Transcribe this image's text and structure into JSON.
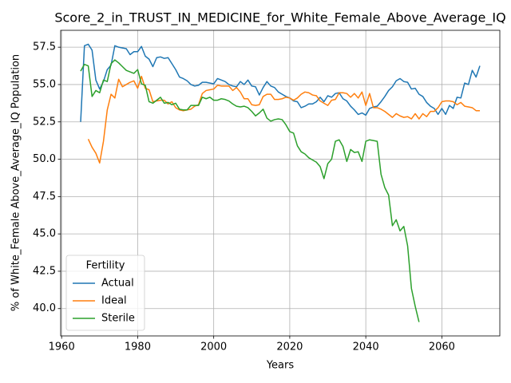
{
  "chart_data": {
    "type": "line",
    "title": "Score_2_in_TRUST_IN_MEDICINE_for_White_Female_Above_Average_IQ",
    "xlabel": "Years",
    "ylabel": "% of White_Female Above_Average_IQ Population",
    "legend_title": "Fertility",
    "legend": "lower left",
    "grid": true,
    "xlim": [
      1959.75,
      2075.25
    ],
    "ylim": [
      38.17,
      58.63
    ],
    "xticks": [
      1960,
      1980,
      2000,
      2020,
      2040,
      2060
    ],
    "yticks": [
      {
        "value": 40,
        "label": "40.0"
      },
      42.5,
      {
        "value": 45,
        "label": "45.0"
      },
      47.5,
      {
        "value": 50,
        "label": "50.0"
      },
      52.5,
      {
        "value": 55,
        "label": "55.0"
      },
      57.5
    ],
    "x": [
      1965,
      1966,
      1967,
      1968,
      1969,
      1970,
      1971,
      1972,
      1973,
      1974,
      1975,
      1976,
      1977,
      1978,
      1979,
      1980,
      1981,
      1982,
      1983,
      1984,
      1985,
      1986,
      1987,
      1988,
      1989,
      1990,
      1991,
      1992,
      1993,
      1994,
      1995,
      1996,
      1997,
      1998,
      1999,
      2000,
      2001,
      2002,
      2003,
      2004,
      2005,
      2006,
      2007,
      2008,
      2009,
      2010,
      2011,
      2012,
      2013,
      2014,
      2015,
      2016,
      2017,
      2018,
      2019,
      2020,
      2021,
      2022,
      2023,
      2024,
      2025,
      2026,
      2027,
      2028,
      2029,
      2030,
      2031,
      2032,
      2033,
      2034,
      2035,
      2036,
      2037,
      2038,
      2039,
      2040,
      2041,
      2042,
      2043,
      2044,
      2045,
      2046,
      2047,
      2048,
      2049,
      2050,
      2051,
      2052,
      2053,
      2054,
      2055,
      2056,
      2057,
      2058,
      2059,
      2060,
      2061,
      2062,
      2063,
      2064,
      2065,
      2066,
      2067,
      2068,
      2069,
      2070
    ],
    "series": [
      {
        "name": "Actual",
        "color": "#1f77b4",
        "values": [
          52.5,
          57.6,
          57.7,
          57.3,
          55.3,
          54.7,
          55.2,
          56.0,
          56.3,
          57.6,
          57.5,
          57.45,
          57.4,
          57.0,
          57.2,
          57.2,
          57.55,
          56.9,
          56.7,
          56.2,
          56.8,
          56.85,
          56.75,
          56.8,
          56.4,
          56.0,
          55.5,
          55.4,
          55.25,
          55.0,
          54.9,
          54.95,
          55.15,
          55.15,
          55.1,
          55.05,
          55.4,
          55.3,
          55.2,
          55.0,
          54.9,
          54.85,
          55.2,
          55.0,
          55.3,
          54.9,
          54.85,
          54.3,
          54.8,
          55.2,
          54.9,
          54.8,
          54.5,
          54.35,
          54.2,
          54.1,
          53.9,
          53.85,
          53.45,
          53.55,
          53.7,
          53.7,
          53.85,
          54.15,
          53.85,
          54.25,
          54.15,
          54.4,
          54.45,
          54.05,
          53.9,
          53.55,
          53.3,
          53.0,
          53.1,
          52.95,
          53.4,
          53.5,
          53.55,
          53.85,
          54.2,
          54.6,
          54.85,
          55.25,
          55.4,
          55.2,
          55.15,
          54.7,
          54.75,
          54.35,
          54.2,
          53.8,
          53.55,
          53.4,
          53.0,
          53.4,
          53.0,
          53.6,
          53.4,
          54.15,
          54.1,
          55.1,
          55.0,
          55.95,
          55.5,
          56.25
        ]
      },
      {
        "name": "Ideal",
        "color": "#ff7f0e",
        "values": [
          null,
          null,
          51.35,
          50.8,
          50.4,
          49.75,
          51.2,
          53.3,
          54.35,
          54.1,
          55.35,
          54.85,
          55.0,
          55.15,
          55.25,
          54.75,
          55.55,
          54.75,
          54.65,
          53.85,
          53.9,
          53.95,
          53.95,
          53.7,
          53.85,
          53.45,
          53.3,
          53.25,
          53.3,
          53.35,
          53.55,
          53.65,
          54.4,
          54.6,
          54.65,
          54.7,
          54.95,
          54.9,
          54.9,
          54.9,
          54.6,
          54.8,
          54.5,
          54.05,
          54.05,
          53.65,
          53.6,
          53.65,
          54.2,
          54.35,
          54.35,
          54.0,
          54.0,
          54.05,
          54.15,
          54.1,
          53.95,
          54.1,
          54.35,
          54.5,
          54.45,
          54.3,
          54.25,
          53.9,
          53.75,
          53.6,
          53.95,
          54.0,
          54.45,
          54.45,
          54.4,
          54.15,
          54.4,
          54.1,
          54.5,
          53.6,
          54.4,
          53.45,
          53.45,
          53.35,
          53.2,
          53.0,
          52.8,
          53.05,
          52.9,
          52.8,
          52.85,
          52.7,
          53.05,
          52.7,
          53.05,
          52.85,
          53.2,
          53.2,
          53.45,
          53.85,
          53.9,
          53.9,
          53.85,
          53.65,
          53.8,
          53.55,
          53.5,
          53.45,
          53.25,
          53.25
        ]
      },
      {
        "name": "Sterile",
        "color": "#2ca02c",
        "values": [
          55.9,
          56.35,
          56.25,
          54.2,
          54.6,
          54.45,
          55.3,
          55.2,
          56.4,
          56.65,
          56.45,
          56.2,
          55.95,
          55.85,
          55.75,
          56.0,
          55.05,
          54.95,
          53.85,
          53.75,
          53.95,
          54.15,
          53.75,
          53.8,
          53.65,
          53.75,
          53.35,
          53.3,
          53.3,
          53.6,
          53.6,
          53.6,
          54.15,
          54.05,
          54.15,
          53.95,
          53.95,
          54.05,
          54.0,
          53.9,
          53.7,
          53.55,
          53.5,
          53.55,
          53.45,
          53.2,
          52.9,
          53.1,
          53.35,
          52.75,
          52.55,
          52.65,
          52.7,
          52.65,
          52.3,
          51.85,
          51.75,
          50.9,
          50.5,
          50.35,
          50.1,
          49.95,
          49.8,
          49.5,
          48.7,
          49.7,
          50.0,
          51.2,
          51.3,
          50.85,
          49.85,
          50.65,
          50.45,
          50.5,
          49.85,
          51.2,
          51.3,
          51.25,
          51.2,
          49.0,
          48.1,
          47.6,
          45.55,
          45.95,
          45.2,
          45.5,
          44.2,
          41.35,
          40.15,
          39.1,
          null,
          null,
          null,
          null,
          null,
          null,
          null,
          null,
          null,
          null,
          null,
          null,
          null,
          null,
          null,
          null
        ]
      }
    ]
  }
}
